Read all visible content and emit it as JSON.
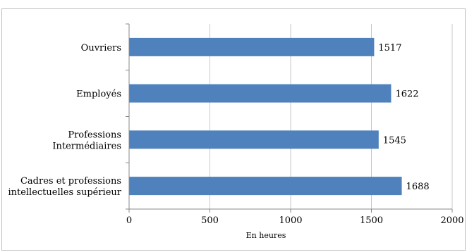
{
  "chart_data": {
    "type": "bar",
    "orientation": "horizontal",
    "categories": [
      [
        "Ouvriers"
      ],
      [
        "Employés"
      ],
      [
        "Professions",
        "Intermédiaires"
      ],
      [
        "Cadres et professions",
        "intellectuelles supérieur"
      ]
    ],
    "values": [
      1517,
      1622,
      1545,
      1688
    ],
    "xlabel": "En heures",
    "xlim": [
      0,
      2000
    ],
    "xticks": [
      0,
      500,
      1000,
      1500,
      2000
    ],
    "grid": true,
    "bar_color": "#4f81bd",
    "grid_color": "#c8c8c8"
  }
}
